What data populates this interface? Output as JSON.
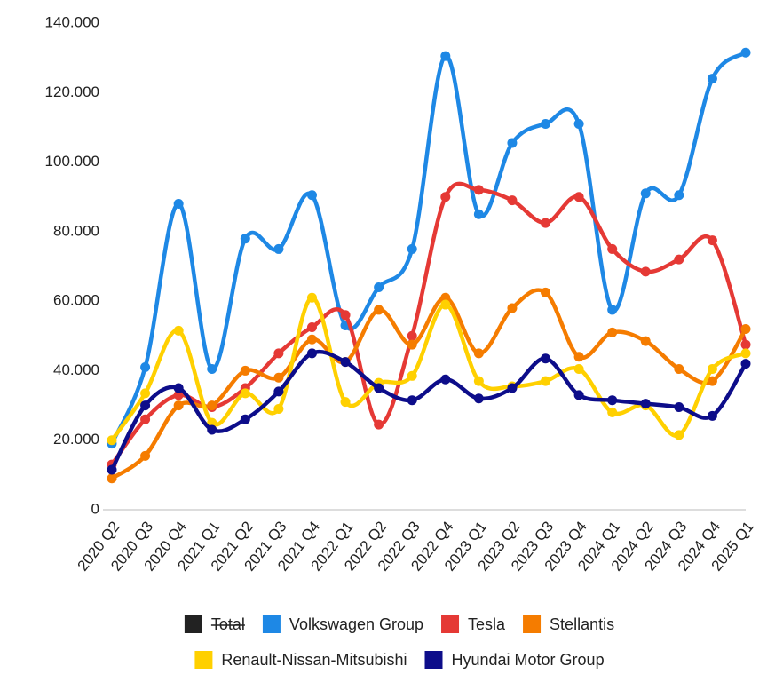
{
  "chart_data": {
    "type": "line",
    "categories": [
      "2020 Q2",
      "2020 Q3",
      "2020 Q4",
      "2021 Q1",
      "2021 Q2",
      "2021 Q3",
      "2021 Q4",
      "2022 Q1",
      "2022 Q2",
      "2022 Q3",
      "2022 Q4",
      "2023 Q1",
      "2023 Q2",
      "2023 Q3",
      "2023 Q4",
      "2024 Q1",
      "2024 Q2",
      "2024 Q3",
      "2024 Q4",
      "2025 Q1"
    ],
    "ylim": [
      0,
      140000
    ],
    "yticks": [
      0,
      {
        "value": 20000,
        "label": "20.000"
      },
      {
        "value": 40000,
        "label": "40.000"
      },
      {
        "value": 60000,
        "label": "60.000"
      },
      {
        "value": 80000,
        "label": "80.000"
      },
      {
        "value": 100000,
        "label": "100.000"
      },
      {
        "value": 120000,
        "label": "120.000"
      },
      {
        "value": 140000,
        "label": "140.000"
      }
    ],
    "grid": false,
    "smooth": true,
    "hidden_series": [
      {
        "name": "Total",
        "color": "#222222"
      }
    ],
    "series": [
      {
        "name": "Volkswagen Group",
        "color": "#1e88e5",
        "values": [
          19000,
          41000,
          88000,
          40500,
          78000,
          75000,
          90500,
          53000,
          64000,
          75000,
          130500,
          85000,
          105500,
          111000,
          111000,
          57500,
          91000,
          90500,
          124000,
          131500
        ]
      },
      {
        "name": "Tesla",
        "color": "#e53935",
        "values": [
          13000,
          26000,
          33000,
          29500,
          35000,
          45000,
          52500,
          56000,
          24500,
          50000,
          90000,
          92000,
          89000,
          82500,
          90000,
          75000,
          68500,
          72000,
          77500,
          47500
        ]
      },
      {
        "name": "Stellantis",
        "color": "#f57c00",
        "values": [
          9000,
          15500,
          30000,
          30000,
          40000,
          38000,
          49000,
          42500,
          57500,
          47500,
          61000,
          45000,
          58000,
          62500,
          44000,
          51000,
          48500,
          40500,
          37000,
          52000
        ]
      },
      {
        "name": "Renault-Nissan-Mitsubishi",
        "color": "#ffd000",
        "values": [
          20000,
          33500,
          51500,
          25000,
          33500,
          29000,
          61000,
          31000,
          36500,
          38500,
          59000,
          37000,
          35500,
          37000,
          40500,
          28000,
          30000,
          21500,
          40500,
          45000
        ]
      },
      {
        "name": "Hyundai Motor Group",
        "color": "#0d0d8a",
        "values": [
          11500,
          30000,
          35000,
          23000,
          26000,
          34000,
          45000,
          42500,
          35000,
          31500,
          37500,
          32000,
          35000,
          43500,
          33000,
          31500,
          30500,
          29500,
          27000,
          42000
        ]
      }
    ]
  }
}
